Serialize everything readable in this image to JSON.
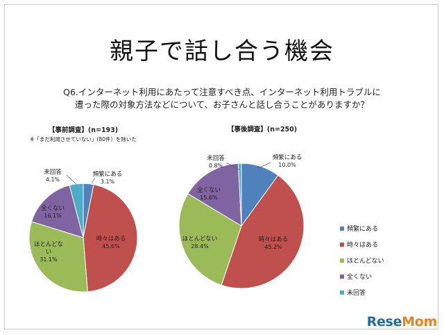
{
  "title": "親子で話し合う機会",
  "question": {
    "line1": "Q6.インターネット利用にあたって注意すべき点、インターネット利用トラブルに",
    "line2": "遭った際の対象方法などについて、お子さんと話し合うことがありますか？"
  },
  "logo": "ReseMom",
  "chart_data": [
    {
      "type": "pie",
      "title": "【事前調査】(n=193)",
      "note": "※「まだ利用させていない」(80件）を除いた",
      "categories": [
        "頻繁にある",
        "時々はある",
        "ほとんどない",
        "全くない",
        "未回答"
      ],
      "values": [
        3.1,
        45.6,
        31.1,
        16.1,
        4.1
      ],
      "value_labels": [
        "3.1%",
        "45.6%",
        "31.1%",
        "16.1%",
        "4.1%"
      ],
      "colors": [
        "#4f81bd",
        "#c0504d",
        "#9bbb59",
        "#8064a2",
        "#4bacc6"
      ]
    },
    {
      "type": "pie",
      "title": "【事後調査】(n=250)",
      "categories": [
        "頻繁にある",
        "時々はある",
        "ほとんどない",
        "全くない",
        "未回答"
      ],
      "values": [
        10.0,
        45.2,
        28.4,
        15.6,
        0.8
      ],
      "value_labels": [
        "10.0%",
        "45.2%",
        "28.4%",
        "15.6%",
        "0.8%"
      ],
      "colors": [
        "#4f81bd",
        "#c0504d",
        "#9bbb59",
        "#8064a2",
        "#4bacc6"
      ],
      "legend": {
        "entries": [
          "頻繁にある",
          "時々はある",
          "ほとんどない",
          "全くない",
          "未回答"
        ],
        "placement": "right"
      }
    }
  ]
}
